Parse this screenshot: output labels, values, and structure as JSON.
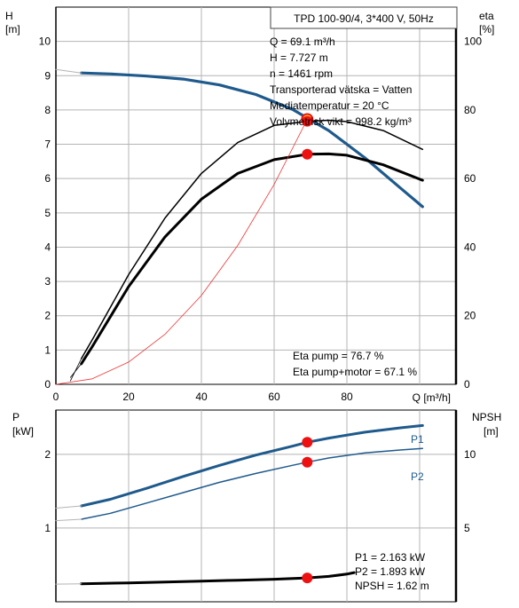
{
  "colors": {
    "head_curve": "#1f5a8c",
    "power_curve": "#1f5a8c",
    "operating_point": "#ee1111",
    "head_point": "#ffee22",
    "system_curve": "#ee3333",
    "axis": "#000000",
    "grid": "#b4b4b4"
  },
  "chart_data": [
    {
      "type": "line",
      "title": "TPD 100-90/4, 3*400 V, 50Hz",
      "y_label_left": "H",
      "y_unit_left": "[m]",
      "y_label_right": "eta",
      "y_unit_right": "[%]",
      "x_label": "Q [m³/h]",
      "xlim": [
        0,
        110
      ],
      "ylim_left": [
        0,
        11
      ],
      "ylim_right": [
        0,
        110
      ],
      "x_ticks": [
        0,
        20,
        40,
        60,
        80
      ],
      "y_ticks_left": [
        0,
        1,
        2,
        3,
        4,
        5,
        6,
        7,
        8,
        9,
        10
      ],
      "y_ticks_right": [
        0,
        20,
        40,
        60,
        80,
        100
      ],
      "grid": true,
      "info_lines": [
        "Q = 69.1 m³/h",
        "H = 7.727 m",
        "n = 1461 rpm",
        "Transporterad vätska = Vatten",
        "Mediatemperatur = 20 °C",
        "Volymetrisk vikt = 998.2 kg/m³"
      ],
      "eta_labels": [
        "Eta pump = 76.7 %",
        "Eta pump+motor = 67.1 %"
      ],
      "series": [
        {
          "role": "head",
          "axis": "left",
          "x": [
            7,
            15,
            25,
            35,
            45,
            55,
            65,
            75,
            85,
            95,
            100.8
          ],
          "y": [
            9.08,
            9.05,
            8.99,
            8.9,
            8.73,
            8.45,
            8.02,
            7.4,
            6.6,
            5.7,
            5.18
          ]
        },
        {
          "role": "head_extension",
          "axis": "left",
          "x": [
            0,
            7
          ],
          "y": [
            9.18,
            9.08
          ]
        },
        {
          "role": "eta_pump",
          "axis": "right",
          "x": [
            7,
            10,
            20,
            30,
            40,
            50,
            60,
            69.1,
            75,
            80,
            90,
            100.8
          ],
          "y": [
            7.5,
            13,
            32,
            48.5,
            61.5,
            70.5,
            75.5,
            76.7,
            77,
            76.6,
            74,
            68.5
          ]
        },
        {
          "role": "eta_pump_extension",
          "axis": "right",
          "x": [
            4,
            7
          ],
          "y": [
            1,
            7.5
          ]
        },
        {
          "role": "eta_pump_motor",
          "axis": "right",
          "x": [
            7,
            10,
            20,
            30,
            40,
            50,
            60,
            69.1,
            75,
            80,
            90,
            100.8
          ],
          "y": [
            6,
            11,
            28.5,
            43,
            54,
            61.5,
            65.5,
            67.1,
            67.2,
            66.8,
            64,
            59.5
          ]
        },
        {
          "role": "eta_pump_motor_extension",
          "axis": "right",
          "x": [
            4,
            7
          ],
          "y": [
            2,
            6
          ]
        },
        {
          "role": "system_curve",
          "axis": "left",
          "x": [
            0,
            10,
            20,
            30,
            40,
            50,
            60,
            69.1
          ],
          "y": [
            0,
            0.16,
            0.65,
            1.46,
            2.59,
            4.05,
            5.83,
            7.727
          ]
        }
      ],
      "operating_points": [
        {
          "axis": "left",
          "x": 69.1,
          "y": 7.727
        },
        {
          "axis": "right",
          "x": 69.1,
          "y": 76.7
        },
        {
          "axis": "right",
          "x": 69.1,
          "y": 67.1
        }
      ]
    },
    {
      "type": "line",
      "y_label_left": "P",
      "y_unit_left": "[kW]",
      "y_label_right": "NPSH",
      "y_unit_right": "[m]",
      "xlim": [
        0,
        110
      ],
      "ylim_left": [
        0,
        2.6
      ],
      "ylim_right": [
        0,
        13
      ],
      "x_ticks": [
        0,
        20,
        40,
        60,
        80
      ],
      "y_ticks_left": [
        1,
        2
      ],
      "y_ticks_right": [
        5,
        10
      ],
      "grid": true,
      "info_lines": [
        "P1 = 2.163 kW",
        "P2 = 1.893 kW",
        "NPSH = 1.62 m"
      ],
      "series": [
        {
          "name": "P1",
          "axis": "left",
          "x": [
            7,
            15,
            25,
            35,
            45,
            55,
            65,
            69.1,
            75,
            85,
            95,
            100.8
          ],
          "y": [
            1.3,
            1.39,
            1.54,
            1.7,
            1.85,
            1.99,
            2.11,
            2.163,
            2.22,
            2.3,
            2.36,
            2.39
          ]
        },
        {
          "role": "p1_extension",
          "axis": "left",
          "x": [
            0,
            7
          ],
          "y": [
            1.27,
            1.3
          ]
        },
        {
          "name": "P2",
          "axis": "left",
          "x": [
            7,
            15,
            25,
            35,
            45,
            55,
            65,
            69.1,
            75,
            85,
            95,
            100.8
          ],
          "y": [
            1.12,
            1.2,
            1.34,
            1.48,
            1.62,
            1.74,
            1.85,
            1.893,
            1.95,
            2.02,
            2.06,
            2.08
          ]
        },
        {
          "role": "p2_extension",
          "axis": "left",
          "x": [
            0,
            7
          ],
          "y": [
            1.1,
            1.12
          ]
        },
        {
          "role": "npsh",
          "axis": "right",
          "x": [
            7,
            20,
            30,
            40,
            50,
            60,
            69.1,
            75,
            80,
            82
          ],
          "y": [
            1.22,
            1.28,
            1.34,
            1.4,
            1.46,
            1.53,
            1.62,
            1.72,
            1.88,
            1.98
          ]
        },
        {
          "role": "npsh_extension",
          "axis": "right",
          "x": [
            0,
            7
          ],
          "y": [
            1.2,
            1.22
          ]
        }
      ],
      "operating_points": [
        {
          "axis": "left",
          "x": 69.1,
          "y": 2.163
        },
        {
          "axis": "left",
          "x": 69.1,
          "y": 1.893
        },
        {
          "axis": "right",
          "x": 69.1,
          "y": 1.62
        }
      ]
    }
  ]
}
